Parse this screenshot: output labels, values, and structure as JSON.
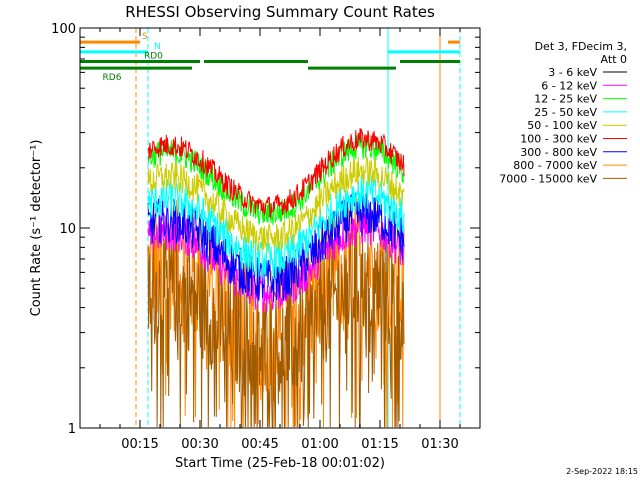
{
  "chart_data": {
    "type": "line",
    "title": "RHESSI Observing Summary Count Rates",
    "xlabel": "Start Time (25-Feb-18 00:01:02)",
    "ylabel": "Count Rate (s⁻¹ detector⁻¹)",
    "y_scale": "log",
    "ylim": [
      1,
      100
    ],
    "xlim_minutes": [
      0,
      100
    ],
    "x_ticks": [
      {
        "label": "00:15",
        "minute": 15
      },
      {
        "label": "00:30",
        "minute": 30
      },
      {
        "label": "00:45",
        "minute": 45
      },
      {
        "label": "01:00",
        "minute": 60
      },
      {
        "label": "01:15",
        "minute": 75
      },
      {
        "label": "01:30",
        "minute": 90
      }
    ],
    "y_ticks": [
      {
        "label": "1",
        "value": 1
      },
      {
        "label": "10",
        "value": 10
      },
      {
        "label": "100",
        "value": 100
      }
    ],
    "legend_header": [
      "Det 3, FDecim 3,",
      "Att 0"
    ],
    "legend_position": "right",
    "series": [
      {
        "name": "3 - 6 keV",
        "color": "#000000",
        "level": 0,
        "noise": 0
      },
      {
        "name": "6 - 12 keV",
        "color": "#ff00ff",
        "level": 9.5,
        "noise": 0.1
      },
      {
        "name": "12 - 25 keV",
        "color": "#00ff00",
        "level": 24,
        "noise": 0.07
      },
      {
        "name": "25 - 50 keV",
        "color": "#00ffff",
        "level": 14,
        "noise": 0.1
      },
      {
        "name": "50 - 100 keV",
        "color": "#cccc00",
        "level": 18,
        "noise": 0.08
      },
      {
        "name": "100 - 300 keV",
        "color": "#ff0000",
        "level": 26,
        "noise": 0.06
      },
      {
        "name": "300 - 800 keV",
        "color": "#0000ff",
        "level": 11,
        "noise": 0.12
      },
      {
        "name": "800 - 7000 keV",
        "color": "#ff8800",
        "level": 6.5,
        "noise": 0.35
      },
      {
        "name": "7000 - 15000 keV",
        "color": "#a05a00",
        "level": 5,
        "noise": 0.3
      }
    ],
    "data_span_minutes": [
      17,
      81
    ],
    "flags": [
      {
        "label": "S",
        "color": "#ff8800",
        "value": 85,
        "segments": [
          [
            0,
            15
          ],
          [
            92,
            95
          ]
        ]
      },
      {
        "label": "N",
        "color": "#00ffff",
        "value": 76,
        "segments": [
          [
            0,
            17
          ],
          [
            77,
            95
          ]
        ]
      },
      {
        "label": "RD0",
        "color": "#008000",
        "value": 68,
        "segments": [
          [
            0,
            30
          ],
          [
            31,
            57
          ],
          [
            80,
            95
          ]
        ]
      },
      {
        "label": "RD6",
        "color": "#008000",
        "value": 63,
        "segments": [
          [
            0,
            28
          ],
          [
            57,
            79
          ]
        ]
      }
    ],
    "vertical_lines": [
      {
        "minute": 0,
        "color": "#00ffff",
        "dashed": false
      },
      {
        "minute": 14,
        "color": "#ff8800",
        "dashed": true
      },
      {
        "minute": 17,
        "color": "#00ffff",
        "dashed": true
      },
      {
        "minute": 77,
        "color": "#00ffff",
        "dashed": false
      },
      {
        "minute": 90,
        "color": "#ff8800",
        "dashed": false
      },
      {
        "minute": 95,
        "color": "#00ffff",
        "dashed": true
      }
    ],
    "footer": "2-Sep-2022 18:15"
  }
}
